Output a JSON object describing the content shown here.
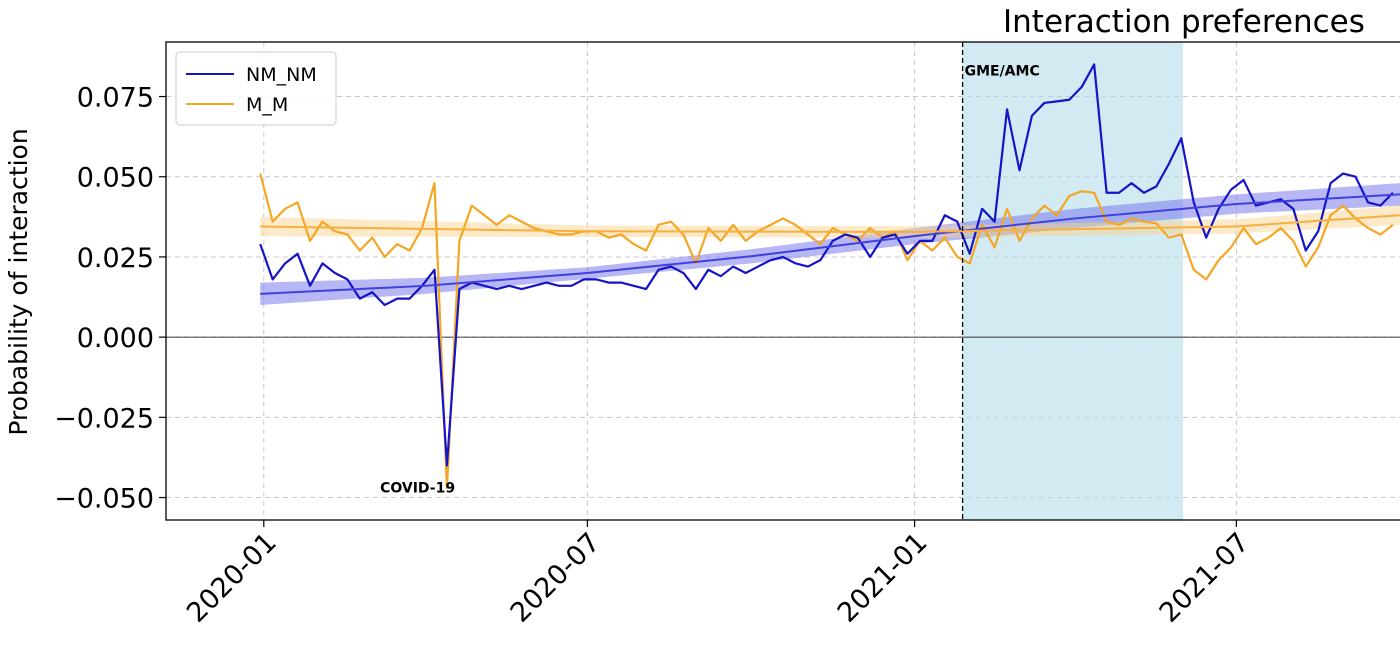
{
  "chart_data": {
    "type": "line",
    "title": "Interaction preferences",
    "xlabel": "",
    "ylabel": "Probability of interaction",
    "x_ticks": [
      "2020-01",
      "2020-07",
      "2021-01",
      "2021-07"
    ],
    "y_ticks": [
      "0.075",
      "0.050",
      "0.025",
      "0.000",
      "−0.025",
      "−0.050"
    ],
    "ylim": [
      -0.057,
      0.092
    ],
    "xlim": [
      "2019-11-07",
      "2021-10-01"
    ],
    "grid": true,
    "legend_position": "top-left",
    "colors": {
      "NM_NM": "#1414c8",
      "M_M": "#f5a623",
      "NM_NM_band": "#7070ee",
      "M_M_band": "#f8d38f",
      "shade": "#add8e6"
    },
    "annotations": [
      {
        "text": "COVID-19",
        "date": "2020-04-01"
      },
      {
        "text": "GME/AMC",
        "date": "2021-01-28"
      }
    ],
    "vline": "2021-01-28",
    "shaded_region": [
      "2021-01-28",
      "2021-06-01"
    ],
    "hline": 0.0,
    "series": [
      {
        "name": "NM_NM",
        "x": [
          "2019-12-30",
          "2020-01-06",
          "2020-01-13",
          "2020-01-20",
          "2020-01-27",
          "2020-02-03",
          "2020-02-10",
          "2020-02-17",
          "2020-02-24",
          "2020-03-02",
          "2020-03-09",
          "2020-03-16",
          "2020-03-23",
          "2020-03-30",
          "2020-04-06",
          "2020-04-13",
          "2020-04-20",
          "2020-04-27",
          "2020-05-04",
          "2020-05-11",
          "2020-05-18",
          "2020-05-25",
          "2020-06-01",
          "2020-06-08",
          "2020-06-15",
          "2020-06-22",
          "2020-06-29",
          "2020-07-06",
          "2020-07-13",
          "2020-07-20",
          "2020-07-27",
          "2020-08-03",
          "2020-08-10",
          "2020-08-17",
          "2020-08-24",
          "2020-08-31",
          "2020-09-07",
          "2020-09-14",
          "2020-09-21",
          "2020-09-28",
          "2020-10-05",
          "2020-10-12",
          "2020-10-19",
          "2020-10-26",
          "2020-11-02",
          "2020-11-09",
          "2020-11-16",
          "2020-11-23",
          "2020-11-30",
          "2020-12-07",
          "2020-12-14",
          "2020-12-21",
          "2020-12-28",
          "2021-01-04",
          "2021-01-11",
          "2021-01-18",
          "2021-01-25",
          "2021-02-01",
          "2021-02-08",
          "2021-02-15",
          "2021-02-22",
          "2021-03-01",
          "2021-03-08",
          "2021-03-15",
          "2021-03-22",
          "2021-03-29",
          "2021-04-05",
          "2021-04-12",
          "2021-04-19",
          "2021-04-26",
          "2021-05-03",
          "2021-05-10",
          "2021-05-17",
          "2021-05-24",
          "2021-05-31",
          "2021-06-07",
          "2021-06-14",
          "2021-06-21",
          "2021-06-28",
          "2021-07-05",
          "2021-07-12",
          "2021-07-19",
          "2021-07-26",
          "2021-08-02",
          "2021-08-09",
          "2021-08-16",
          "2021-08-23",
          "2021-08-30",
          "2021-09-06",
          "2021-09-13",
          "2021-09-20",
          "2021-09-27"
        ],
        "values": [
          0.029,
          0.018,
          0.023,
          0.026,
          0.016,
          0.023,
          0.02,
          0.018,
          0.012,
          0.014,
          0.01,
          0.012,
          0.012,
          0.016,
          0.021,
          -0.04,
          0.015,
          0.017,
          0.016,
          0.015,
          0.016,
          0.015,
          0.016,
          0.017,
          0.016,
          0.016,
          0.018,
          0.018,
          0.017,
          0.017,
          0.016,
          0.015,
          0.021,
          0.022,
          0.02,
          0.015,
          0.021,
          0.019,
          0.022,
          0.02,
          0.022,
          0.024,
          0.025,
          0.023,
          0.022,
          0.024,
          0.03,
          0.032,
          0.031,
          0.025,
          0.031,
          0.032,
          0.026,
          0.03,
          0.03,
          0.038,
          0.036,
          0.026,
          0.04,
          0.036,
          0.071,
          0.052,
          0.069,
          0.073,
          0.0735,
          0.074,
          0.078,
          0.085,
          0.045,
          0.045,
          0.048,
          0.045,
          0.047,
          0.054,
          0.062,
          0.042,
          0.031,
          0.04,
          0.046,
          0.049,
          0.041,
          0.042,
          0.043,
          0.04,
          0.027,
          0.033,
          0.048,
          0.051,
          0.05,
          0.042,
          0.041,
          0.045
        ]
      },
      {
        "name": "M_M",
        "x": [
          "2019-12-30",
          "2020-01-06",
          "2020-01-13",
          "2020-01-20",
          "2020-01-27",
          "2020-02-03",
          "2020-02-10",
          "2020-02-17",
          "2020-02-24",
          "2020-03-02",
          "2020-03-09",
          "2020-03-16",
          "2020-03-23",
          "2020-03-30",
          "2020-04-06",
          "2020-04-13",
          "2020-04-20",
          "2020-04-27",
          "2020-05-04",
          "2020-05-11",
          "2020-05-18",
          "2020-05-25",
          "2020-06-01",
          "2020-06-08",
          "2020-06-15",
          "2020-06-22",
          "2020-06-29",
          "2020-07-06",
          "2020-07-13",
          "2020-07-20",
          "2020-07-27",
          "2020-08-03",
          "2020-08-10",
          "2020-08-17",
          "2020-08-24",
          "2020-08-31",
          "2020-09-07",
          "2020-09-14",
          "2020-09-21",
          "2020-09-28",
          "2020-10-05",
          "2020-10-12",
          "2020-10-19",
          "2020-10-26",
          "2020-11-02",
          "2020-11-09",
          "2020-11-16",
          "2020-11-23",
          "2020-11-30",
          "2020-12-07",
          "2020-12-14",
          "2020-12-21",
          "2020-12-28",
          "2021-01-04",
          "2021-01-11",
          "2021-01-18",
          "2021-01-25",
          "2021-02-01",
          "2021-02-08",
          "2021-02-15",
          "2021-02-22",
          "2021-03-01",
          "2021-03-08",
          "2021-03-15",
          "2021-03-22",
          "2021-03-29",
          "2021-04-05",
          "2021-04-12",
          "2021-04-19",
          "2021-04-26",
          "2021-05-03",
          "2021-05-10",
          "2021-05-17",
          "2021-05-24",
          "2021-05-31",
          "2021-06-07",
          "2021-06-14",
          "2021-06-21",
          "2021-06-28",
          "2021-07-05",
          "2021-07-12",
          "2021-07-19",
          "2021-07-26",
          "2021-08-02",
          "2021-08-09",
          "2021-08-16",
          "2021-08-23",
          "2021-08-30",
          "2021-09-06",
          "2021-09-13",
          "2021-09-20",
          "2021-09-27"
        ],
        "values": [
          0.051,
          0.036,
          0.04,
          0.042,
          0.03,
          0.036,
          0.033,
          0.032,
          0.027,
          0.031,
          0.025,
          0.029,
          0.027,
          0.034,
          0.048,
          -0.047,
          0.03,
          0.041,
          0.038,
          0.035,
          0.038,
          0.036,
          0.034,
          0.033,
          0.032,
          0.032,
          0.033,
          0.033,
          0.031,
          0.032,
          0.029,
          0.027,
          0.035,
          0.036,
          0.032,
          0.023,
          0.034,
          0.03,
          0.035,
          0.03,
          0.033,
          0.035,
          0.037,
          0.035,
          0.032,
          0.029,
          0.034,
          0.032,
          0.03,
          0.034,
          0.031,
          0.033,
          0.024,
          0.03,
          0.027,
          0.031,
          0.025,
          0.023,
          0.035,
          0.028,
          0.04,
          0.03,
          0.037,
          0.041,
          0.038,
          0.044,
          0.0455,
          0.045,
          0.036,
          0.035,
          0.037,
          0.036,
          0.0355,
          0.031,
          0.032,
          0.021,
          0.018,
          0.024,
          0.028,
          0.034,
          0.029,
          0.031,
          0.034,
          0.03,
          0.022,
          0.028,
          0.038,
          0.041,
          0.037,
          0.034,
          0.032,
          0.035
        ]
      }
    ],
    "trends": [
      {
        "series": "NM_NM",
        "x": [
          "2019-12-30",
          "2020-04-01",
          "2020-07-01",
          "2020-10-01",
          "2021-01-01",
          "2021-04-01",
          "2021-07-01",
          "2021-10-01"
        ],
        "values": [
          0.0135,
          0.016,
          0.02,
          0.0252,
          0.0315,
          0.037,
          0.0415,
          0.0445
        ],
        "band": [
          0.0035,
          0.0025,
          0.0018,
          0.0022,
          0.0025,
          0.003,
          0.003,
          0.0035
        ]
      },
      {
        "series": "M_M",
        "x": [
          "2019-12-30",
          "2020-07-01",
          "2021-01-01",
          "2021-07-01",
          "2021-10-01"
        ],
        "values": [
          0.0345,
          0.033,
          0.0328,
          0.0345,
          0.038
        ],
        "band": [
          0.003,
          0.0018,
          0.0018,
          0.0022,
          0.003
        ]
      }
    ]
  }
}
